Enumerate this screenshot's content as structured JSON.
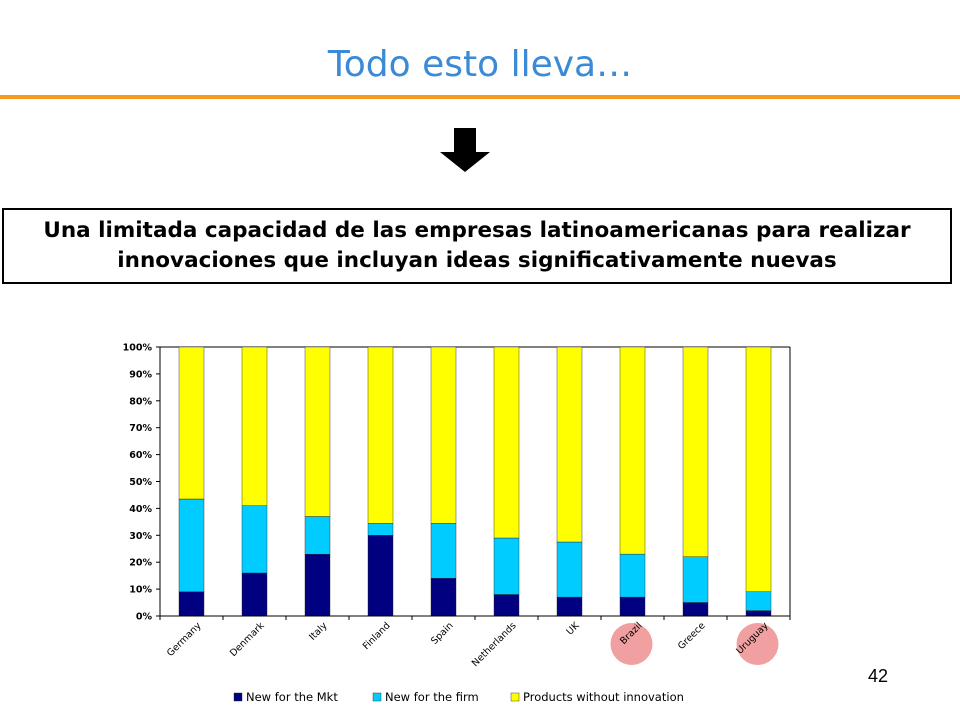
{
  "slide": {
    "title": "Todo esto lleva…",
    "callout_line1": "Una limitada capacidad de las empresas latinoamericanas para realizar",
    "callout_line2": "innovaciones que incluyan ideas significativamente nuevas",
    "page_number": "42",
    "accent_color": "#f59a1e",
    "title_color": "#3a8ad6"
  },
  "chart_data": {
    "type": "bar",
    "stacked": "percent",
    "categories": [
      "Germany",
      "Denmark",
      "Italy",
      "Finland",
      "Spain",
      "Netherlands",
      "UK",
      "Brazil",
      "Greece",
      "Uruguay"
    ],
    "highlighted": [
      "Brazil",
      "Uruguay"
    ],
    "highlight_color": "#f0a0a0",
    "series": [
      {
        "name": "New for the Mkt",
        "color": "#000080",
        "values": [
          9,
          16,
          23,
          30,
          14,
          8,
          7,
          7,
          5,
          2
        ]
      },
      {
        "name": "New for the firm",
        "color": "#00ccff",
        "values": [
          34.5,
          25,
          14,
          4.5,
          20.5,
          21,
          20.5,
          16,
          17,
          7
        ]
      },
      {
        "name": "Products without innovation",
        "color": "#ffff00",
        "values": [
          56.5,
          59,
          63,
          65.5,
          65.5,
          71,
          72.5,
          77,
          78,
          91
        ]
      }
    ],
    "yticks": [
      "0%",
      "10%",
      "20%",
      "30%",
      "40%",
      "50%",
      "60%",
      "70%",
      "80%",
      "90%",
      "100%"
    ],
    "ylim": [
      0,
      100
    ],
    "legend": "bottom",
    "grid": false
  }
}
